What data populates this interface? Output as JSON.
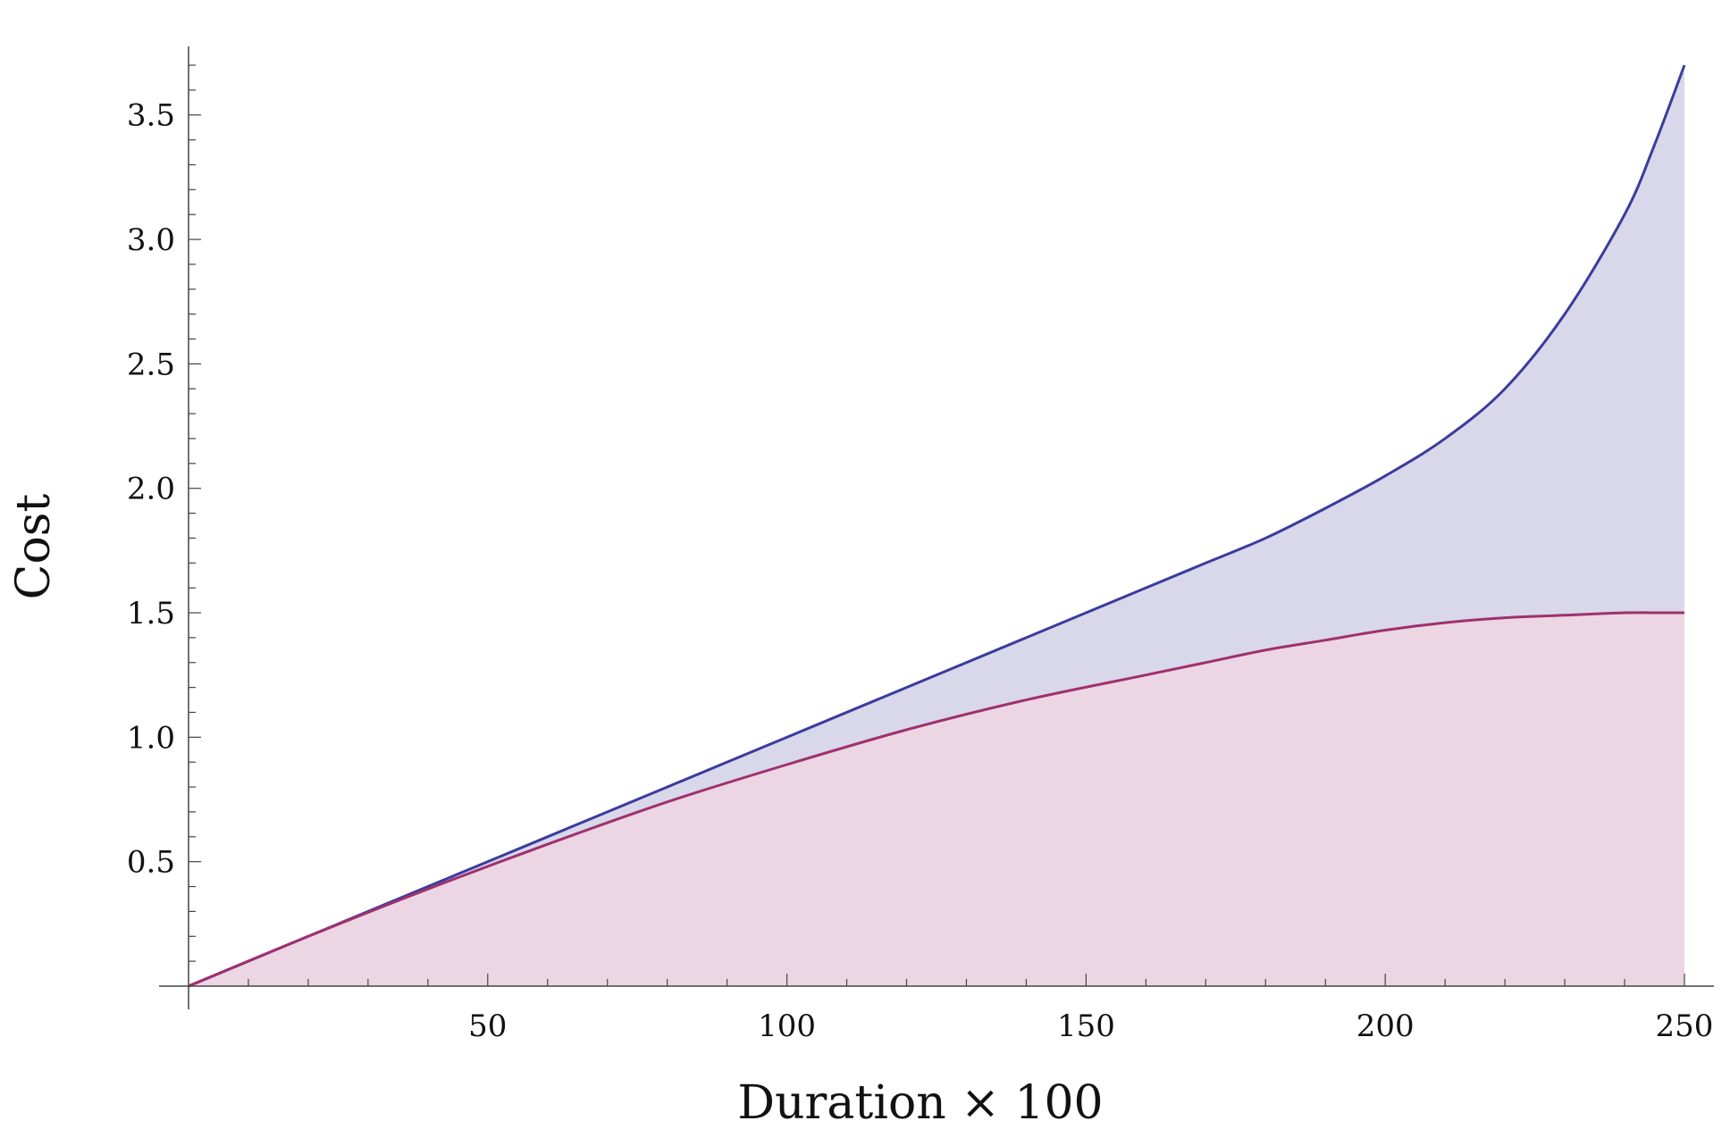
{
  "chart_data": {
    "type": "area",
    "xlabel": "Duration × 100",
    "ylabel": "Cost",
    "xlim": [
      0,
      250
    ],
    "ylim": [
      0,
      3.7
    ],
    "x_ticks": [
      50,
      100,
      150,
      200,
      250
    ],
    "x_tick_labels": [
      "50",
      "100",
      "150",
      "200",
      "250"
    ],
    "y_ticks": [
      0.5,
      1.0,
      1.5,
      2.0,
      2.5,
      3.0,
      3.5
    ],
    "y_tick_labels": [
      "0.5",
      "1.0",
      "1.5",
      "2.0",
      "2.5",
      "3.0",
      "3.5"
    ],
    "grid": false,
    "x": [
      0,
      20,
      40,
      60,
      80,
      100,
      120,
      140,
      160,
      170,
      180,
      190,
      200,
      210,
      220,
      230,
      240,
      245,
      250
    ],
    "series": [
      {
        "color": "#3b3b9e",
        "fill": "#d8d8ea",
        "values": [
          0,
          0.2,
          0.4,
          0.6,
          0.8,
          1.0,
          1.2,
          1.4,
          1.6,
          1.7,
          1.8,
          1.92,
          2.05,
          2.2,
          2.4,
          2.7,
          3.1,
          3.38,
          3.7
        ]
      },
      {
        "color": "#a0306e",
        "fill": "#ecd6e3",
        "values": [
          0,
          0.2,
          0.39,
          0.57,
          0.74,
          0.89,
          1.03,
          1.15,
          1.25,
          1.3,
          1.35,
          1.39,
          1.43,
          1.46,
          1.48,
          1.49,
          1.5,
          1.5,
          1.5
        ]
      }
    ]
  }
}
